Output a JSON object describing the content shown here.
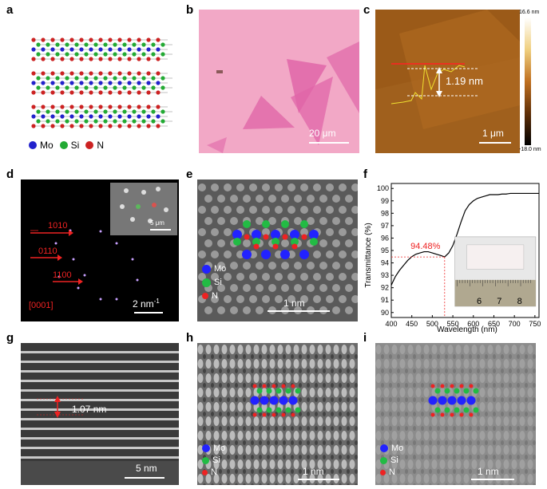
{
  "panels": {
    "a": {
      "label": "a",
      "legend": [
        {
          "sym": "Mo",
          "color": "#2222cc"
        },
        {
          "sym": "Si",
          "color": "#22aa33"
        },
        {
          "sym": "N",
          "color": "#cc2222"
        }
      ]
    },
    "b": {
      "label": "b",
      "scale": "20 μm"
    },
    "c": {
      "label": "c",
      "height_label": "1.19 nm",
      "scale": "1 μm",
      "color_max": "16.6 nm",
      "color_min": "-18.0 nm"
    },
    "d": {
      "label": "d",
      "zone": "[0001]",
      "indices": [
        "1010",
        "0110",
        "1100"
      ],
      "scale": "2 nm",
      "scale_sup": "-1",
      "inset_scale": "5 μm"
    },
    "e": {
      "label": "e",
      "scale": "1 nm",
      "legend": [
        {
          "sym": "Mo",
          "color": "#2222ff"
        },
        {
          "sym": "Si",
          "color": "#22bb44"
        },
        {
          "sym": "N",
          "color": "#ee2222"
        }
      ]
    },
    "f": {
      "label": "f",
      "peak_label": "94.48%",
      "xlabel": "Wavelength (nm)",
      "ylabel": "Transmittance (%)",
      "ruler": [
        "6",
        "7",
        "8"
      ]
    },
    "g": {
      "label": "g",
      "spacing": "1.07 nm",
      "scale": "5 nm"
    },
    "h": {
      "label": "h",
      "scale": "1 nm",
      "legend": [
        {
          "sym": "Mo",
          "color": "#2222ff"
        },
        {
          "sym": "Si",
          "color": "#22bb44"
        },
        {
          "sym": "N",
          "color": "#ee2222"
        }
      ]
    },
    "i": {
      "label": "i",
      "scale": "1 nm",
      "legend": [
        {
          "sym": "Mo",
          "color": "#2222ff"
        },
        {
          "sym": "Si",
          "color": "#22bb44"
        },
        {
          "sym": "N",
          "color": "#ee2222"
        }
      ]
    }
  },
  "chart_data": {
    "type": "line",
    "title": "",
    "xlabel": "Wavelength (nm)",
    "ylabel": "Transmittance (%)",
    "xlim": [
      400,
      760
    ],
    "ylim": [
      89.6,
      100.4
    ],
    "xticks": [
      400,
      450,
      500,
      550,
      600,
      650,
      700,
      750
    ],
    "yticks": [
      90,
      91,
      92,
      93,
      94,
      95,
      96,
      97,
      98,
      99,
      100
    ],
    "series": [
      {
        "x": [
          400,
          410,
          420,
          430,
          440,
          450,
          460,
          470,
          480,
          490,
          500,
          510,
          520,
          530,
          540,
          550,
          560,
          570,
          580,
          590,
          600,
          610,
          620,
          630,
          640,
          650,
          660,
          670,
          680,
          690,
          700,
          720,
          740,
          760
        ],
        "values": [
          92.2,
          92.9,
          93.4,
          93.8,
          94.2,
          94.5,
          94.7,
          94.8,
          94.9,
          94.9,
          94.8,
          94.7,
          94.6,
          94.48,
          94.8,
          95.4,
          96.3,
          97.3,
          98.2,
          98.7,
          99.0,
          99.2,
          99.3,
          99.4,
          99.5,
          99.5,
          99.5,
          99.55,
          99.55,
          99.6,
          99.6,
          99.6,
          99.6,
          99.6
        ]
      }
    ],
    "annotation": {
      "x": 530,
      "y": 94.48,
      "text": "94.48%"
    }
  }
}
